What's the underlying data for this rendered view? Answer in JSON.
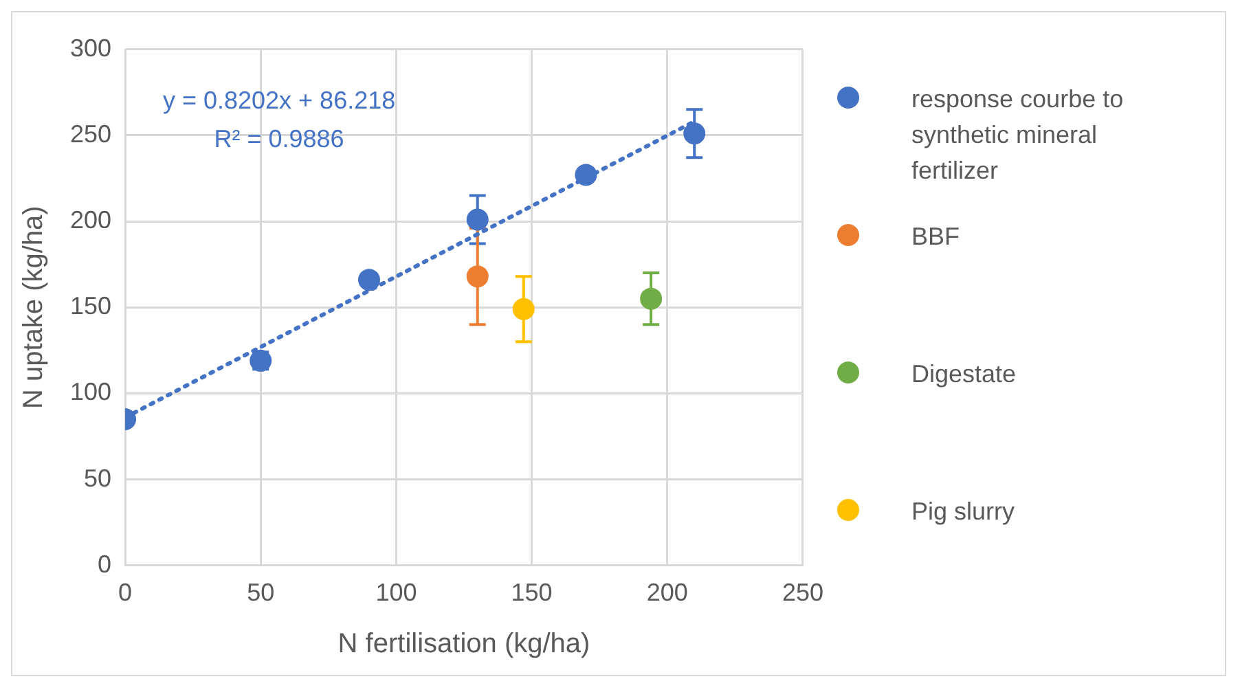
{
  "chart_data": {
    "type": "scatter",
    "xlabel": "N fertilisation (kg/ha)",
    "ylabel": "N uptake (kg/ha)",
    "xlim": [
      0,
      250
    ],
    "xticks": [
      0,
      50,
      100,
      150,
      200,
      250
    ],
    "ylim": [
      0,
      300
    ],
    "yticks": [
      0,
      50,
      100,
      150,
      200,
      250,
      300
    ],
    "grid": true,
    "legend": "right",
    "marker": "circle",
    "annotations": [
      "y = 0.8202x + 86.218",
      "R² = 0.9886"
    ],
    "series": [
      {
        "name": "response courbe to synthetic mineral fertilizer",
        "color": "#4472c4",
        "x": [
          0,
          50,
          90,
          130,
          170,
          210
        ],
        "values": [
          85,
          119,
          166,
          201,
          227,
          251
        ],
        "errors": [
          null,
          5,
          null,
          14,
          null,
          14
        ]
      },
      {
        "name": "BBF",
        "color": "#ed7d31",
        "x": [
          130
        ],
        "values": [
          168
        ],
        "errors": [
          28
        ]
      },
      {
        "name": "Digestate",
        "color": "#70ad47",
        "x": [
          194
        ],
        "values": [
          155
        ],
        "errors": [
          15
        ]
      },
      {
        "name": "Pig slurry",
        "color": "#ffc000",
        "x": [
          147
        ],
        "values": [
          149
        ],
        "errors": [
          19
        ]
      },
      {
        "type": "line",
        "color": "#4472c4",
        "line_style": "dotted",
        "marker": "none",
        "x": [
          0,
          210
        ],
        "values": [
          86,
          258
        ]
      }
    ]
  }
}
